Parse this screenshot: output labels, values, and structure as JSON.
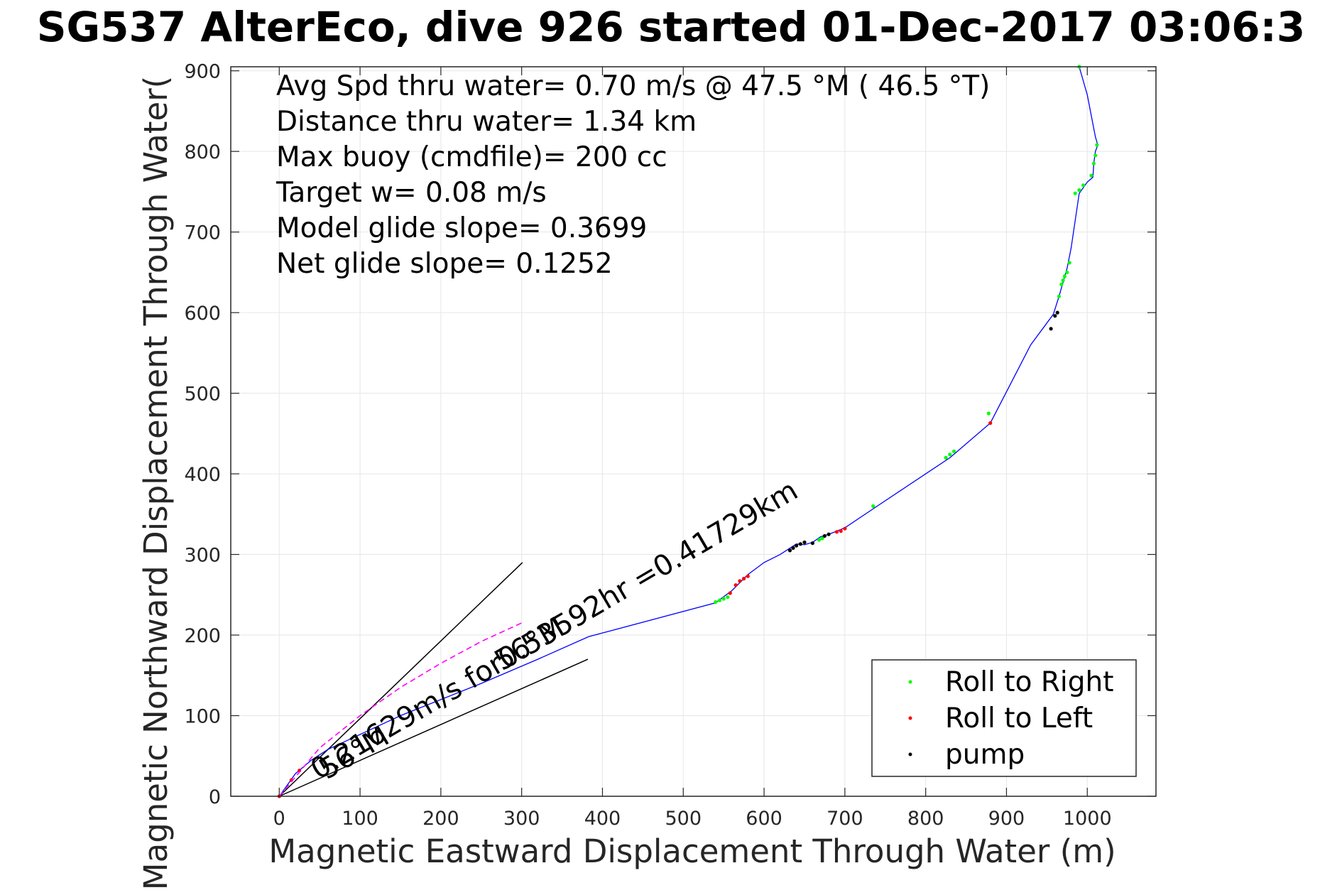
{
  "chart_data": {
    "type": "scatter",
    "title": "SG537 AlterEco, dive 926 started 01-Dec-2017 03:06:3",
    "xlabel": "Magnetic Eastward Displacement Through Water (m)",
    "ylabel": "Magnetic Northward Displacement Through Water(",
    "xlim": [
      -60,
      1085
    ],
    "ylim": [
      0,
      905
    ],
    "x_ticks": [
      0,
      100,
      200,
      300,
      400,
      500,
      600,
      700,
      800,
      900,
      1000
    ],
    "y_ticks": [
      0,
      100,
      200,
      300,
      400,
      500,
      600,
      700,
      800,
      900
    ],
    "grid": true,
    "legend_position": "bottom-right",
    "colors": {
      "track": "#0000ff",
      "right": "#00ff00",
      "left": "#ff0000",
      "pump": "#000000",
      "dashed": "#ff00ff"
    },
    "info_lines": [
      "Avg Spd thru water=  0.70 m/s @  47.5 °M ( 46.5 °T)",
      "Distance thru water=  1.34 km",
      "Max buoy (cmdfile)= 200 cc",
      "Target w= 0.08 m/s",
      "Model glide slope= 0.3699",
      "Net glide slope= 0.1252"
    ],
    "annotations": {
      "current_label": "0.21629m/s for0.53592hr =0.41729km",
      "angle_label_upper": "56°M",
      "angle_label_lower": "56°M"
    },
    "series": [
      {
        "name": "track",
        "style": "line",
        "x": [
          0,
          20,
          40,
          60,
          90,
          150,
          250,
          320,
          383,
          540,
          560,
          580,
          600,
          620,
          640,
          650,
          660,
          670,
          680,
          700,
          740,
          770,
          800,
          830,
          880,
          930,
          958,
          965,
          975,
          980,
          990,
          1000,
          1007,
          1008,
          1010,
          1013,
          1010,
          1000,
          990
        ],
        "y": [
          0,
          28,
          45,
          58,
          72,
          100,
          140,
          170,
          198,
          240,
          255,
          275,
          290,
          300,
          313,
          312,
          315,
          322,
          325,
          333,
          360,
          380,
          400,
          420,
          463,
          560,
          598,
          620,
          655,
          680,
          748,
          762,
          768,
          785,
          800,
          808,
          818,
          870,
          905
        ]
      },
      {
        "name": "Roll to Right",
        "style": "points",
        "x": [
          540,
          545,
          550,
          555,
          668,
          672,
          735,
          825,
          830,
          835,
          878,
          965,
          968,
          970,
          972,
          975,
          978,
          985,
          990,
          995,
          1005,
          1008,
          1010,
          1012,
          990
        ],
        "y": [
          241,
          243,
          245,
          247,
          318,
          320,
          360,
          420,
          424,
          428,
          475,
          620,
          635,
          640,
          645,
          650,
          662,
          748,
          752,
          758,
          770,
          785,
          795,
          808,
          905
        ]
      },
      {
        "name": "Roll to Left",
        "style": "points",
        "x": [
          0,
          15,
          25,
          558,
          565,
          570,
          575,
          580,
          690,
          695,
          700,
          880
        ],
        "y": [
          0,
          20,
          32,
          252,
          262,
          267,
          270,
          273,
          328,
          329,
          332,
          463
        ]
      },
      {
        "name": "pump",
        "style": "points",
        "x": [
          632,
          636,
          640,
          645,
          650,
          660,
          675,
          680,
          955,
          960,
          963
        ],
        "y": [
          305,
          308,
          311,
          313,
          315,
          314,
          323,
          325,
          580,
          596,
          600
        ]
      },
      {
        "name": "current",
        "style": "dashed",
        "x": [
          0,
          50,
          100,
          150,
          200,
          250,
          300
        ],
        "y": [
          0,
          60,
          100,
          135,
          165,
          192,
          215
        ]
      }
    ],
    "reference_lines": [
      {
        "x": [
          0,
          301
        ],
        "y": [
          0,
          290
        ]
      },
      {
        "x": [
          0,
          382
        ],
        "y": [
          0,
          170
        ]
      }
    ]
  }
}
